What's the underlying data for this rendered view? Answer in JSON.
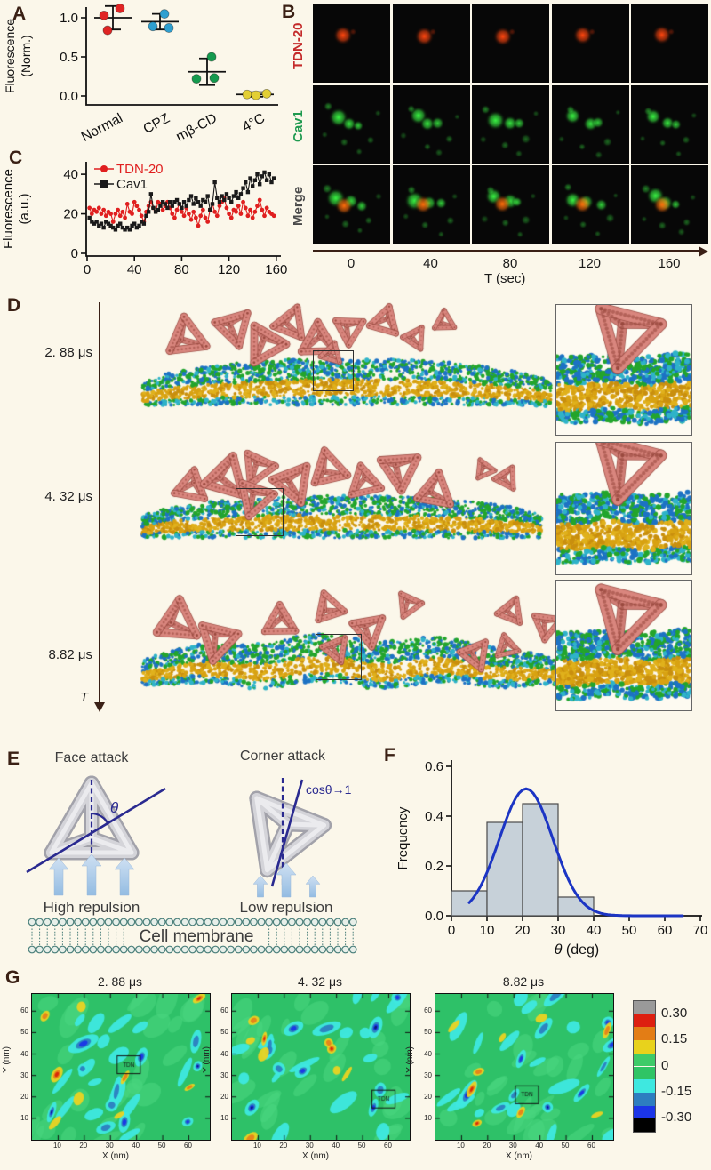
{
  "panels": {
    "a": "A",
    "b": "B",
    "c": "C",
    "d": "D",
    "e": "E",
    "f": "F",
    "g": "G"
  },
  "panel_b": {
    "row_labels": [
      {
        "text": "TDN-20",
        "color": "#c42a2a"
      },
      {
        "text": "Cav1",
        "color": "#1f9a50"
      },
      {
        "text": "Merge",
        "color": "#4a4a4a"
      }
    ],
    "time_labels": [
      "0",
      "40",
      "80",
      "120",
      "160"
    ],
    "time_axis_label": "T (sec)"
  },
  "panel_d": {
    "time_labels": [
      "2. 88 μs",
      "4. 32 μs",
      "8.82 μs"
    ],
    "t_label": "T"
  },
  "panel_e": {
    "face_title": "Face attack",
    "corner_title": "Corner attack",
    "theta_label": "θ",
    "cos_label": "cosθ→1",
    "high_label": "High repulsion",
    "low_label": "Low repulsion",
    "membrane_label": "Cell membrane"
  },
  "chart_data": [
    {
      "id": "panel-a",
      "type": "scatter",
      "ylabel_line1": "Fluorescence",
      "ylabel_line2": "(Norm.)",
      "yticks": [
        0.0,
        0.5,
        1.0
      ],
      "ylim": [
        -0.1,
        1.25
      ],
      "categories": [
        "Normal",
        "CPZ",
        "mβ-CD",
        "4°C"
      ],
      "groups": [
        {
          "label": "Normal",
          "color": "#e02424",
          "mean": 1.0,
          "err": 0.15,
          "points": [
            1.03,
            1.12,
            0.84
          ]
        },
        {
          "label": "CPZ",
          "color": "#2e9fd0",
          "mean": 0.95,
          "err": 0.1,
          "points": [
            1.05,
            0.89,
            0.87
          ]
        },
        {
          "label": "mβ-CD",
          "color": "#149a4e",
          "mean": 0.31,
          "err": 0.17,
          "points": [
            0.5,
            0.22,
            0.23
          ]
        },
        {
          "label": "4°C",
          "color": "#e3cf35",
          "mean": 0.02,
          "err": 0.03,
          "points": [
            0.02,
            0.01,
            0.03
          ]
        }
      ]
    },
    {
      "id": "panel-c",
      "type": "line",
      "ylabel_line1": "Fluorescence",
      "ylabel_line2": "(a.u.)",
      "yticks": [
        0,
        20,
        40
      ],
      "xticks": [
        0,
        40,
        80,
        120,
        160
      ],
      "xlim": [
        0,
        164
      ],
      "ylim": [
        0,
        46
      ],
      "x_start": 2,
      "x_step": 2,
      "series": [
        {
          "name": "TDN-20",
          "color": "#e01f1f",
          "marker": "circle",
          "values": [
            23,
            20,
            22,
            21,
            23,
            20,
            22,
            19,
            21,
            20,
            16,
            20,
            22,
            19,
            21,
            18,
            25,
            21,
            20,
            26,
            24,
            22,
            19,
            16,
            21,
            24,
            26,
            23,
            21,
            26,
            25,
            22,
            24,
            26,
            23,
            20,
            18,
            22,
            25,
            21,
            19,
            23,
            20,
            17,
            21,
            18,
            14,
            19,
            22,
            18,
            16,
            22,
            25,
            21,
            19,
            24,
            26,
            28,
            23,
            20,
            18,
            22,
            21,
            24,
            20,
            26,
            23,
            19,
            22,
            18,
            21,
            24,
            27,
            22,
            19,
            23,
            21,
            20,
            19
          ]
        },
        {
          "name": "Cav1",
          "color": "#1a1a1a",
          "marker": "square",
          "values": [
            18,
            16,
            15,
            16,
            14,
            15,
            13,
            16,
            15,
            14,
            13,
            12,
            14,
            15,
            13,
            12,
            13,
            12,
            14,
            15,
            13,
            14,
            16,
            15,
            19,
            21,
            30,
            23,
            21,
            22,
            24,
            26,
            25,
            23,
            26,
            24,
            26,
            27,
            25,
            23,
            26,
            24,
            27,
            29,
            25,
            28,
            26,
            24,
            27,
            26,
            29,
            22,
            25,
            36,
            28,
            26,
            29,
            27,
            30,
            28,
            26,
            29,
            31,
            28,
            30,
            33,
            36,
            31,
            38,
            34,
            37,
            40,
            35,
            39,
            41,
            37,
            40,
            36,
            38
          ]
        }
      ]
    },
    {
      "id": "panel-f",
      "type": "histogram",
      "xlabel": "θ (deg)",
      "ylabel": "Frequency",
      "xticks": [
        0,
        10,
        20,
        30,
        40,
        50,
        60,
        70
      ],
      "yticks": [
        0.0,
        0.2,
        0.4,
        0.6
      ],
      "xlim": [
        0,
        70
      ],
      "ylim": [
        0,
        0.6
      ],
      "bar_color": "#c7d1d9",
      "bar_edge": "#4a4a4a",
      "bins": [
        {
          "range": [
            0,
            10
          ],
          "value": 0.1
        },
        {
          "range": [
            10,
            20
          ],
          "value": 0.375
        },
        {
          "range": [
            20,
            30
          ],
          "value": 0.45
        },
        {
          "range": [
            30,
            40
          ],
          "value": 0.075
        }
      ],
      "fit_curve": {
        "type": "gaussian",
        "amplitude": 0.51,
        "mean": 21,
        "sigma": 7.5,
        "x_range": [
          5,
          65
        ],
        "color": "#1c35c4"
      }
    },
    {
      "id": "panel-g",
      "type": "heatmap",
      "xlabel": "X (nm)",
      "ylabel": "Y (nm)",
      "xticks": [
        10,
        20,
        30,
        40,
        50,
        60
      ],
      "yticks": [
        10,
        20,
        30,
        40,
        50,
        60
      ],
      "range_nm": [
        0,
        68
      ],
      "tdn_label": "TDN",
      "maps": [
        {
          "title": "2. 88 μs",
          "tdn_box": {
            "x": 37,
            "y": 35
          }
        },
        {
          "title": "4. 32 μs",
          "tdn_box": {
            "x": 58,
            "y": 19
          }
        },
        {
          "title": "8.82 μs",
          "tdn_box": {
            "x": 35,
            "y": 21
          }
        }
      ],
      "colorbar": {
        "tick_labels": [
          "0.30",
          "0.15",
          "0",
          "-0.15",
          "-0.30"
        ],
        "colors": [
          "#9a9a9a",
          "#dd1f10",
          "#e37d15",
          "#e8d21c",
          "#3ecb68",
          "#2fc465",
          "#3ee8e0",
          "#2d7ec0",
          "#1b35e8",
          "#000000"
        ]
      }
    }
  ]
}
